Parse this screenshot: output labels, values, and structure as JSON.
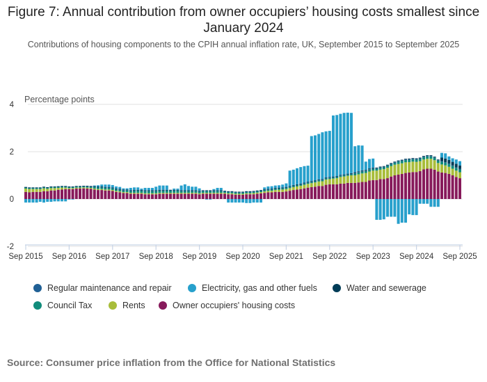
{
  "title": "Figure 7: Annual contribution from owner occupiers’ housing costs smallest since January 2024",
  "subtitle": "Contributions of housing components to the CPIH annual inflation rate, UK, September 2015 to September 2025",
  "source": "Source: Consumer price inflation from the Office for National Statistics",
  "chart_data": {
    "type": "bar",
    "stacked": true,
    "ylabel": "Percentage points",
    "ylim": [
      -2,
      4
    ],
    "yticks": [
      "4",
      "2",
      "0",
      "-2"
    ],
    "xticks": [
      "Sep 2015",
      "Sep 2016",
      "Sep 2017",
      "Sep 2018",
      "Sep 2019",
      "Sep 2020",
      "Sep 2021",
      "Sep 2022",
      "Sep 2023",
      "Sep 2024",
      "Sep 2025"
    ],
    "x_start": "Sep 2015",
    "x_end": "Sep 2025",
    "frequency": "monthly",
    "grid": true,
    "legend_position": "bottom",
    "series": [
      {
        "name": "Owner occupiers' housing costs",
        "color": "#871a5b",
        "values": [
          0.3,
          0.28,
          0.3,
          0.3,
          0.3,
          0.33,
          0.33,
          0.36,
          0.36,
          0.39,
          0.4,
          0.42,
          0.42,
          0.42,
          0.44,
          0.44,
          0.45,
          0.44,
          0.43,
          0.4,
          0.38,
          0.38,
          0.36,
          0.36,
          0.34,
          0.3,
          0.28,
          0.25,
          0.25,
          0.22,
          0.22,
          0.22,
          0.22,
          0.2,
          0.2,
          0.2,
          0.2,
          0.22,
          0.22,
          0.22,
          0.22,
          0.22,
          0.22,
          0.22,
          0.22,
          0.22,
          0.22,
          0.22,
          0.2,
          0.22,
          0.22,
          0.22,
          0.22,
          0.22,
          0.22,
          0.22,
          0.2,
          0.2,
          0.18,
          0.18,
          0.18,
          0.2,
          0.2,
          0.2,
          0.22,
          0.24,
          0.26,
          0.28,
          0.28,
          0.3,
          0.3,
          0.3,
          0.32,
          0.35,
          0.38,
          0.4,
          0.42,
          0.45,
          0.48,
          0.5,
          0.52,
          0.55,
          0.55,
          0.6,
          0.62,
          0.62,
          0.62,
          0.65,
          0.65,
          0.68,
          0.68,
          0.68,
          0.7,
          0.72,
          0.72,
          0.78,
          0.8,
          0.8,
          0.84,
          0.84,
          0.88,
          0.95,
          1.0,
          1.03,
          1.06,
          1.1,
          1.12,
          1.14,
          1.14,
          1.18,
          1.25,
          1.28,
          1.28,
          1.24,
          1.16,
          1.12,
          1.1,
          1.06,
          1.0,
          0.93,
          0.88
        ]
      },
      {
        "name": "Rents",
        "color": "#a8bd3a",
        "values": [
          0.14,
          0.14,
          0.12,
          0.12,
          0.12,
          0.12,
          0.1,
          0.1,
          0.1,
          0.08,
          0.08,
          0.06,
          0.04,
          0.04,
          0.04,
          0.04,
          0.04,
          0.04,
          0.04,
          0.04,
          0.04,
          0.04,
          0.04,
          0.04,
          0.04,
          0.04,
          0.04,
          0.04,
          0.04,
          0.04,
          0.04,
          0.04,
          0.04,
          0.04,
          0.04,
          0.04,
          0.04,
          0.04,
          0.04,
          0.04,
          0.04,
          0.04,
          0.04,
          0.04,
          0.04,
          0.04,
          0.04,
          0.04,
          0.04,
          0.04,
          0.04,
          0.04,
          0.04,
          0.04,
          0.04,
          0.04,
          0.04,
          0.04,
          0.04,
          0.04,
          0.04,
          0.04,
          0.04,
          0.05,
          0.05,
          0.05,
          0.06,
          0.06,
          0.07,
          0.08,
          0.09,
          0.1,
          0.1,
          0.11,
          0.12,
          0.13,
          0.14,
          0.15,
          0.16,
          0.17,
          0.18,
          0.19,
          0.2,
          0.22,
          0.22,
          0.24,
          0.26,
          0.28,
          0.3,
          0.3,
          0.32,
          0.32,
          0.34,
          0.36,
          0.38,
          0.38,
          0.4,
          0.4,
          0.4,
          0.42,
          0.44,
          0.44,
          0.45,
          0.45,
          0.45,
          0.45,
          0.44,
          0.44,
          0.43,
          0.42,
          0.42,
          0.42,
          0.42,
          0.4,
          0.36,
          0.34,
          0.32,
          0.3,
          0.28,
          0.27,
          0.25
        ]
      },
      {
        "name": "Council Tax",
        "color": "#118c7b",
        "values": [
          0.05,
          0.05,
          0.05,
          0.05,
          0.05,
          0.05,
          0.05,
          0.05,
          0.05,
          0.05,
          0.05,
          0.05,
          0.05,
          0.05,
          0.05,
          0.05,
          0.05,
          0.05,
          0.05,
          0.08,
          0.08,
          0.08,
          0.08,
          0.08,
          0.08,
          0.08,
          0.08,
          0.08,
          0.08,
          0.08,
          0.1,
          0.1,
          0.1,
          0.1,
          0.1,
          0.1,
          0.1,
          0.1,
          0.1,
          0.1,
          0.1,
          0.1,
          0.1,
          0.08,
          0.08,
          0.08,
          0.08,
          0.08,
          0.08,
          0.08,
          0.08,
          0.08,
          0.08,
          0.08,
          0.08,
          0.06,
          0.06,
          0.06,
          0.06,
          0.06,
          0.06,
          0.06,
          0.06,
          0.06,
          0.06,
          0.06,
          0.06,
          0.06,
          0.06,
          0.06,
          0.06,
          0.06,
          0.06,
          0.06,
          0.06,
          0.06,
          0.06,
          0.06,
          0.06,
          0.05,
          0.05,
          0.05,
          0.05,
          0.05,
          0.05,
          0.05,
          0.05,
          0.05,
          0.05,
          0.05,
          0.05,
          0.08,
          0.08,
          0.08,
          0.08,
          0.08,
          0.08,
          0.08,
          0.08,
          0.08,
          0.08,
          0.08,
          0.08,
          0.1,
          0.1,
          0.1,
          0.1,
          0.1,
          0.1,
          0.1,
          0.1,
          0.1,
          0.1,
          0.1,
          0.1,
          0.12,
          0.12,
          0.12,
          0.12,
          0.12,
          0.12
        ]
      },
      {
        "name": "Regular maintenance and repair",
        "color": "#206095",
        "values": [
          0.01,
          0.01,
          0.01,
          0.01,
          0.01,
          0.01,
          0.01,
          0.01,
          0.01,
          0.01,
          0.01,
          0.01,
          0.01,
          0.01,
          0.01,
          0.01,
          0.01,
          0.01,
          0.01,
          0.01,
          0.01,
          0.01,
          0.01,
          0.01,
          0.01,
          0.01,
          0.01,
          0.01,
          0.01,
          0.01,
          0.01,
          0.01,
          0.01,
          0.01,
          0.01,
          0.01,
          0.01,
          0.01,
          0.01,
          0.01,
          0.01,
          0.01,
          0.01,
          0.01,
          0.01,
          0.01,
          0.01,
          0.01,
          0.01,
          0.01,
          0.01,
          0.01,
          0.01,
          0.01,
          0.01,
          0.01,
          0.01,
          0.01,
          0.01,
          0.01,
          0.01,
          0.01,
          0.01,
          0.01,
          0.01,
          0.01,
          0.01,
          0.01,
          0.01,
          0.01,
          0.01,
          0.01,
          0.01,
          0.01,
          0.01,
          0.01,
          0.01,
          0.01,
          0.01,
          0.02,
          0.02,
          0.02,
          0.02,
          0.02,
          0.02,
          0.02,
          0.02,
          0.02,
          0.02,
          0.02,
          0.02,
          0.02,
          0.02,
          0.02,
          0.02,
          0.02,
          0.02,
          0.02,
          0.02,
          0.02,
          0.02,
          0.02,
          0.02,
          0.02,
          0.02,
          0.02,
          0.02,
          0.02,
          0.02,
          0.02,
          0.02,
          0.02,
          0.02,
          0.02,
          0.02,
          0.02,
          0.02,
          0.02,
          0.02,
          0.02,
          0.02
        ]
      },
      {
        "name": "Water and sewerage",
        "color": "#003c57",
        "values": [
          0.01,
          0.01,
          0.01,
          0.01,
          0.01,
          0.01,
          0.01,
          0.01,
          0.01,
          0.01,
          0.01,
          0.01,
          0.01,
          0.01,
          0.01,
          0.01,
          0.01,
          0.02,
          0.02,
          0.02,
          0.02,
          0.02,
          0.02,
          0.02,
          0.02,
          0.02,
          0.02,
          0.02,
          0.02,
          0.02,
          0.02,
          0.02,
          0.02,
          0.02,
          0.02,
          0.02,
          0.02,
          0.02,
          0.02,
          0.02,
          0.02,
          0.02,
          0.02,
          0.02,
          0.02,
          0.02,
          0.02,
          0.02,
          0.02,
          0.02,
          0.02,
          0.02,
          0.02,
          0.02,
          0.02,
          0.02,
          0.02,
          0.02,
          0.02,
          0.02,
          0.02,
          0.02,
          0.02,
          0.02,
          0.02,
          0.02,
          0.02,
          0.02,
          0.02,
          0.02,
          0.02,
          0.02,
          0.02,
          0.02,
          0.02,
          0.02,
          0.02,
          0.02,
          0.02,
          0.02,
          0.02,
          0.02,
          0.02,
          0.02,
          0.02,
          0.02,
          0.02,
          0.02,
          0.02,
          0.02,
          0.02,
          0.03,
          0.03,
          0.03,
          0.03,
          0.03,
          0.03,
          0.03,
          0.03,
          0.03,
          0.03,
          0.03,
          0.03,
          0.03,
          0.03,
          0.03,
          0.03,
          0.03,
          0.03,
          0.03,
          0.03,
          0.03,
          0.03,
          0.03,
          0.03,
          0.15,
          0.15,
          0.15,
          0.15,
          0.15,
          0.15
        ]
      },
      {
        "name": "Electricity, gas and other fuels",
        "color": "#27a0cc",
        "values": [
          -0.15,
          -0.15,
          -0.15,
          -0.15,
          -0.12,
          -0.15,
          -0.12,
          -0.12,
          -0.1,
          -0.1,
          -0.1,
          -0.1,
          -0.02,
          -0.02,
          0,
          0,
          0,
          0,
          0,
          0.02,
          0.05,
          0.08,
          0.1,
          0.1,
          0.1,
          0.08,
          0.08,
          0.05,
          0.05,
          0.1,
          0.1,
          0.1,
          0.05,
          0.1,
          0.1,
          0.1,
          0.15,
          0.18,
          0.18,
          0.18,
          0.0,
          0.05,
          0.05,
          0.2,
          0.25,
          0.18,
          0.15,
          0.15,
          0.1,
          0.0,
          -0.02,
          -0.02,
          0.05,
          0.1,
          0.1,
          0.0,
          -0.15,
          -0.15,
          -0.15,
          -0.15,
          -0.15,
          -0.17,
          -0.17,
          -0.15,
          -0.15,
          -0.15,
          0.08,
          0.1,
          0.1,
          0.1,
          0.1,
          0.12,
          0.15,
          0.65,
          0.65,
          0.68,
          0.7,
          0.7,
          0.68,
          1.9,
          1.9,
          1.92,
          1.98,
          1.95,
          1.95,
          2.58,
          2.58,
          2.58,
          2.6,
          2.58,
          2.55,
          1.1,
          1.1,
          1.05,
          0.35,
          0.4,
          0.38,
          -0.88,
          -0.88,
          -0.86,
          -0.75,
          -0.75,
          -0.75,
          -1.05,
          -1.0,
          -1.0,
          -0.65,
          -0.68,
          -0.68,
          -0.2,
          -0.2,
          -0.2,
          -0.33,
          -0.33,
          -0.33,
          0.2,
          0.22,
          0.15,
          0.15,
          0.18,
          0.18
        ]
      }
    ],
    "legend_order": [
      "Regular maintenance and repair",
      "Electricity, gas and other fuels",
      "Water and sewerage",
      "Council Tax",
      "Rents",
      "Owner occupiers' housing costs"
    ]
  }
}
